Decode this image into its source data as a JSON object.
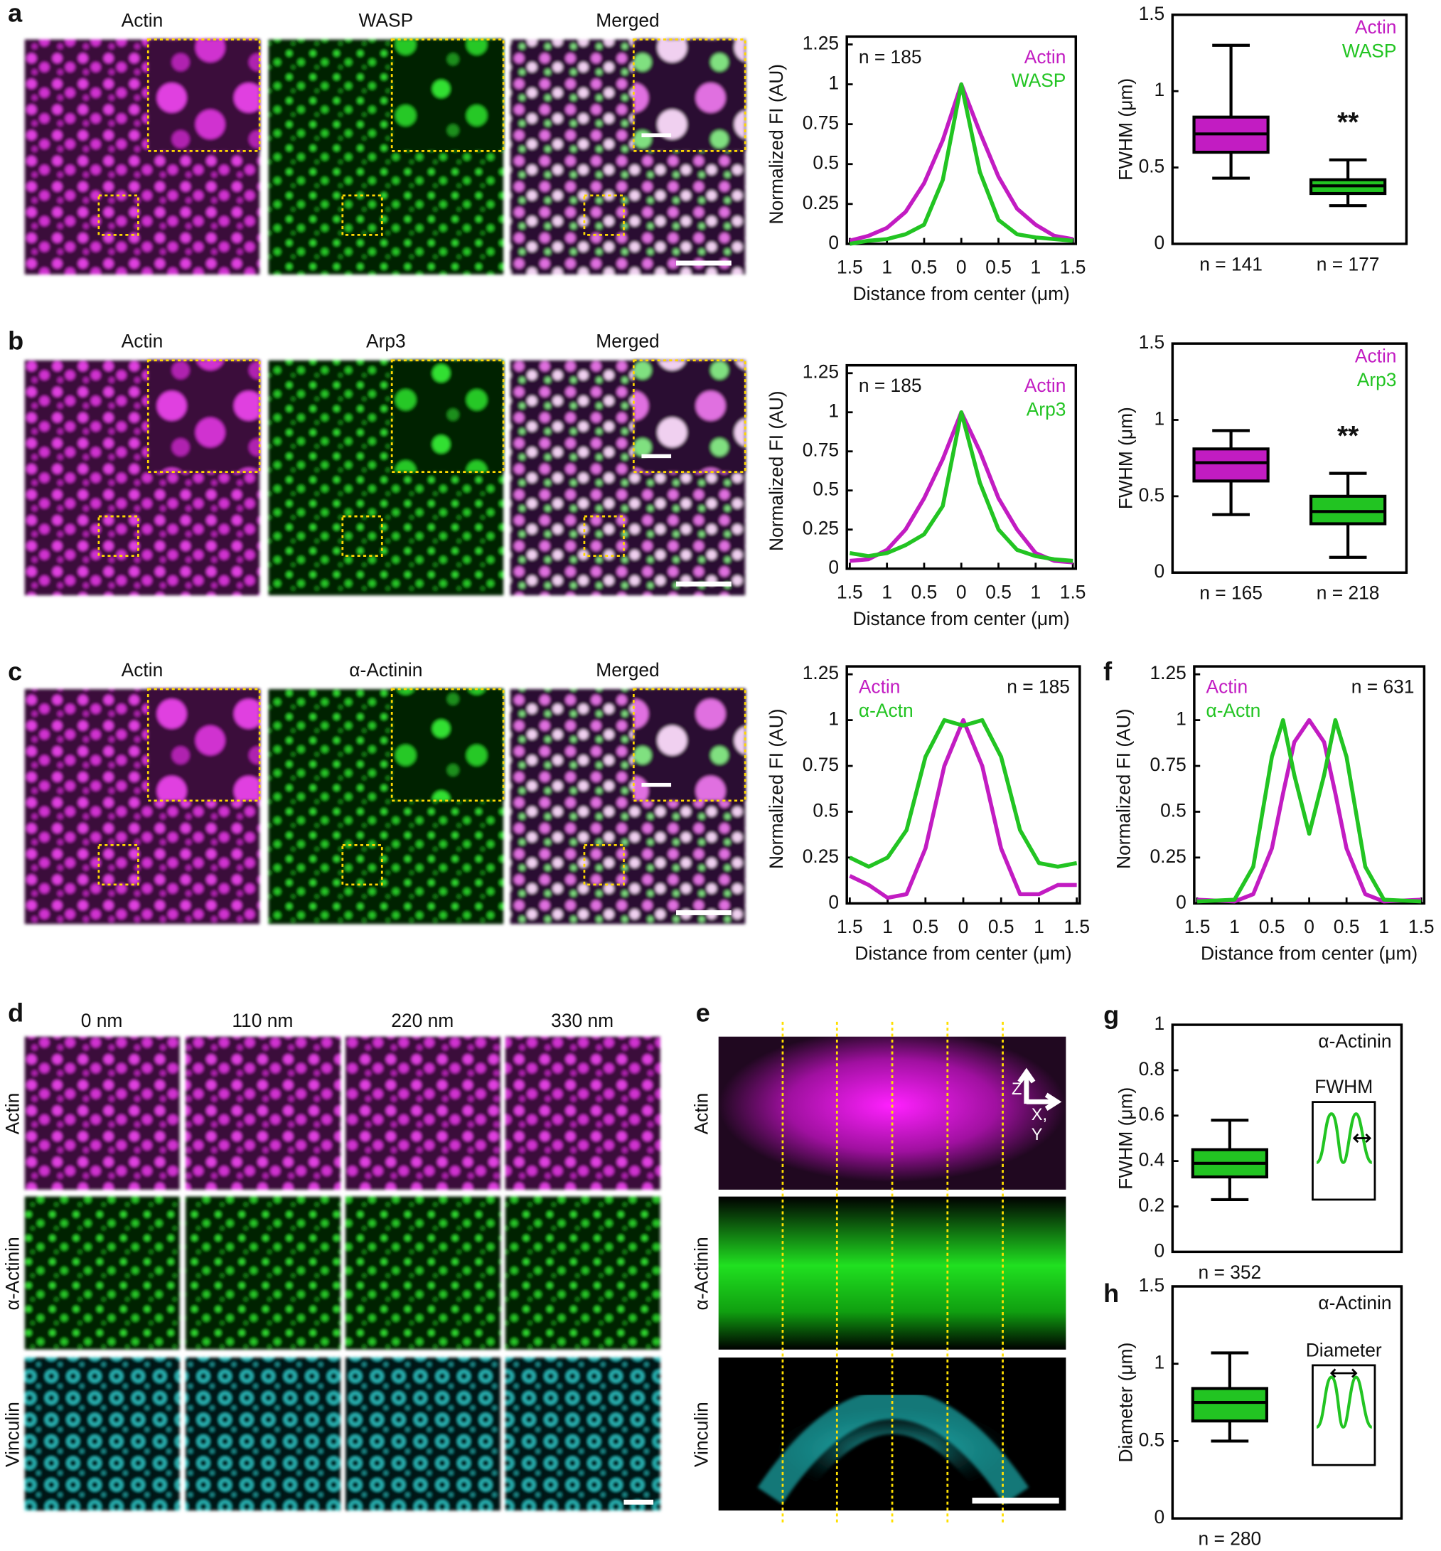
{
  "panel_letters": [
    "a",
    "b",
    "c",
    "d",
    "e",
    "f",
    "g",
    "h"
  ],
  "row_a": {
    "titles": [
      "Actin",
      "WASP",
      "Merged"
    ]
  },
  "row_b": {
    "titles": [
      "Actin",
      "Arp3",
      "Merged"
    ]
  },
  "row_c": {
    "titles": [
      "Actin",
      "α-Actinin",
      "Merged"
    ]
  },
  "panel_d": {
    "columns": [
      "0 nm",
      "110 nm",
      "220 nm",
      "330 nm"
    ],
    "rows": [
      "Actin",
      "α-Actinin",
      "Vinculin"
    ]
  },
  "panel_e": {
    "rows": [
      "Actin",
      "α-Actinin",
      "Vinculin"
    ],
    "axis_labels": [
      "Z",
      "X,",
      "Y"
    ]
  },
  "chart_data": [
    {
      "type": "line",
      "x": [
        -1.5,
        -1.25,
        -1,
        -0.75,
        -0.5,
        -0.25,
        0,
        0.25,
        0.5,
        0.75,
        1,
        1.25,
        1.5
      ],
      "xlim": [
        -1.5,
        1.5
      ],
      "xticks": [
        {
          "value": -1.5,
          "label": "1.5"
        },
        {
          "value": -1,
          "label": "1"
        },
        {
          "value": -0.5,
          "label": "0.5"
        },
        0,
        0.5,
        1,
        1.5
      ],
      "ylim": [
        0,
        1.25
      ],
      "yticks": [
        0,
        0.25,
        0.5,
        0.75,
        1,
        1.25
      ],
      "xlabel": "Distance from center (μm)",
      "ylabel": "Normalized FI (AU)",
      "annotation": "n = 185",
      "legend": "upper right",
      "series": [
        {
          "name": "Actin",
          "color": "#c21cc2",
          "values": [
            0.02,
            0.05,
            0.1,
            0.2,
            0.38,
            0.65,
            1,
            0.7,
            0.42,
            0.22,
            0.12,
            0.05,
            0.03
          ]
        },
        {
          "name": "WASP",
          "color": "#22c422",
          "values": [
            0,
            0.02,
            0.03,
            0.06,
            0.12,
            0.4,
            1,
            0.45,
            0.15,
            0.06,
            0.04,
            0.03,
            0.02
          ]
        }
      ]
    },
    {
      "type": "box",
      "categories": [
        "n = 141",
        "n = 177"
      ],
      "ylim": [
        0,
        1.5
      ],
      "yticks": [
        0,
        0.5,
        1,
        1.5
      ],
      "ylabel": "FWHM (μm)",
      "legend": "upper right",
      "significance": "**",
      "series": [
        {
          "name": "Actin",
          "color": "#c21cc2",
          "whisker_low": 0.43,
          "q1": 0.6,
          "median": 0.72,
          "q3": 0.83,
          "whisker_high": 1.3
        },
        {
          "name": "WASP",
          "color": "#22c422",
          "whisker_low": 0.25,
          "q1": 0.33,
          "median": 0.38,
          "q3": 0.42,
          "whisker_high": 0.55
        }
      ]
    },
    {
      "type": "line",
      "x": [
        -1.5,
        -1.25,
        -1,
        -0.75,
        -0.5,
        -0.25,
        0,
        0.25,
        0.5,
        0.75,
        1,
        1.25,
        1.5
      ],
      "xlim": [
        -1.5,
        1.5
      ],
      "xticks": [
        {
          "value": -1.5,
          "label": "1.5"
        },
        {
          "value": -1,
          "label": "1"
        },
        {
          "value": -0.5,
          "label": "0.5"
        },
        0,
        0.5,
        1,
        1.5
      ],
      "ylim": [
        0,
        1.25
      ],
      "yticks": [
        0,
        0.25,
        0.5,
        0.75,
        1,
        1.25
      ],
      "xlabel": "Distance from center (μm)",
      "ylabel": "Normalized FI (AU)",
      "annotation": "n = 185",
      "legend": "upper right",
      "series": [
        {
          "name": "Actin",
          "color": "#c21cc2",
          "values": [
            0.05,
            0.06,
            0.12,
            0.25,
            0.45,
            0.7,
            1,
            0.75,
            0.45,
            0.25,
            0.1,
            0.05,
            0.04
          ]
        },
        {
          "name": "Arp3",
          "color": "#22c422",
          "values": [
            0.1,
            0.08,
            0.1,
            0.15,
            0.22,
            0.4,
            1,
            0.55,
            0.25,
            0.12,
            0.08,
            0.06,
            0.05
          ]
        }
      ]
    },
    {
      "type": "box",
      "categories": [
        "n = 165",
        "n = 218"
      ],
      "ylim": [
        0,
        1.5
      ],
      "yticks": [
        0,
        0.5,
        1,
        1.5
      ],
      "ylabel": "FWHM (μm)",
      "legend": "upper right",
      "significance": "**",
      "series": [
        {
          "name": "Actin",
          "color": "#c21cc2",
          "whisker_low": 0.38,
          "q1": 0.6,
          "median": 0.72,
          "q3": 0.81,
          "whisker_high": 0.93
        },
        {
          "name": "Arp3",
          "color": "#22c422",
          "whisker_low": 0.1,
          "q1": 0.32,
          "median": 0.4,
          "q3": 0.5,
          "whisker_high": 0.65
        }
      ]
    },
    {
      "type": "line",
      "x": [
        -1.5,
        -1.25,
        -1,
        -0.75,
        -0.5,
        -0.25,
        0,
        0.25,
        0.5,
        0.75,
        1,
        1.25,
        1.5
      ],
      "xlim": [
        -1.5,
        1.5
      ],
      "xticks": [
        {
          "value": -1.5,
          "label": "1.5"
        },
        {
          "value": -1,
          "label": "1"
        },
        {
          "value": -0.5,
          "label": "0.5"
        },
        0,
        0.5,
        1,
        1.5
      ],
      "ylim": [
        0,
        1.25
      ],
      "yticks": [
        0,
        0.25,
        0.5,
        0.75,
        1,
        1.25
      ],
      "xlabel": "Distance from center (μm)",
      "ylabel": "Normalized FI (AU)",
      "annotation": "n = 185",
      "legend": "upper left",
      "series": [
        {
          "name": "Actin",
          "color": "#c21cc2",
          "values": [
            0.15,
            0.1,
            0.03,
            0.05,
            0.3,
            0.75,
            1,
            0.75,
            0.3,
            0.05,
            0.05,
            0.1,
            0.1
          ]
        },
        {
          "name": "α-Actn",
          "color": "#22c422",
          "values": [
            0.25,
            0.2,
            0.25,
            0.4,
            0.8,
            1,
            0.97,
            1,
            0.8,
            0.4,
            0.22,
            0.2,
            0.22
          ]
        }
      ]
    },
    {
      "type": "line",
      "x": [
        -1.5,
        -1,
        -0.75,
        -0.5,
        -0.35,
        -0.2,
        0,
        0.2,
        0.35,
        0.5,
        0.75,
        1,
        1.5
      ],
      "xlim": [
        -1.5,
        1.5
      ],
      "xticks": [
        {
          "value": -1.5,
          "label": "1.5"
        },
        {
          "value": -1,
          "label": "1"
        },
        {
          "value": -0.5,
          "label": "0.5"
        },
        0,
        0.5,
        1,
        1.5
      ],
      "ylim": [
        0,
        1.25
      ],
      "yticks": [
        0,
        0.25,
        0.5,
        0.75,
        1,
        1.25
      ],
      "xlabel": "Distance from center (μm)",
      "ylabel": "Normalized FI (AU)",
      "annotation": "n = 631",
      "legend": "upper left",
      "series": [
        {
          "name": "Actin",
          "color": "#c21cc2",
          "values": [
            0.02,
            0.01,
            0.05,
            0.3,
            0.6,
            0.88,
            1,
            0.88,
            0.6,
            0.3,
            0.05,
            0.01,
            0.02
          ]
        },
        {
          "name": "α-Actn",
          "color": "#22c422",
          "values": [
            0.01,
            0.02,
            0.2,
            0.8,
            1,
            0.7,
            0.38,
            0.7,
            1,
            0.8,
            0.2,
            0.02,
            0.01
          ]
        }
      ]
    },
    {
      "type": "box",
      "categories": [
        "n = 352"
      ],
      "ylim": [
        0,
        1
      ],
      "yticks": [
        0,
        0.2,
        0.4,
        0.6,
        0.8,
        1
      ],
      "ylabel": "FWHM (μm)",
      "annotation": "α-Actinin",
      "inset_label": "FWHM",
      "series": [
        {
          "color": "#22c422",
          "whisker_low": 0.23,
          "q1": 0.33,
          "median": 0.39,
          "q3": 0.45,
          "whisker_high": 0.58
        }
      ]
    },
    {
      "type": "box",
      "categories": [
        "n = 280"
      ],
      "ylim": [
        0,
        1.5
      ],
      "yticks": [
        0,
        0.5,
        1,
        1.5
      ],
      "ylabel": "Diameter (μm)",
      "annotation": "α-Actinin",
      "inset_label": "Diameter",
      "series": [
        {
          "color": "#22c422",
          "whisker_low": 0.5,
          "q1": 0.63,
          "median": 0.75,
          "q3": 0.84,
          "whisker_high": 1.07
        }
      ]
    }
  ]
}
